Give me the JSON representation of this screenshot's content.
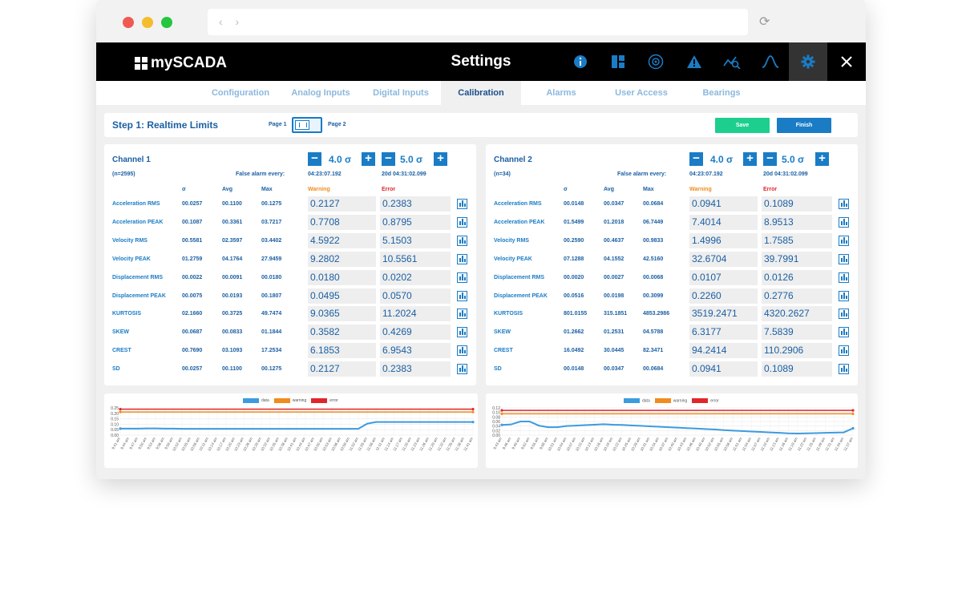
{
  "app": {
    "title": "Settings",
    "logo": "mySCADA"
  },
  "toolbar_icons": [
    "info-icon",
    "dashboard-icon",
    "network-icon",
    "warning-icon",
    "analytics-icon",
    "waveform-icon",
    "gear-icon",
    "close-icon"
  ],
  "tabs": [
    "Configuration",
    "Analog Inputs",
    "Digital Inputs",
    "Calibration",
    "Alarms",
    "User Access",
    "Bearings"
  ],
  "active_tab": "Calibration",
  "step": {
    "title": "Step 1: Realtime Limits",
    "page1": "Page 1",
    "page2": "Page 2",
    "save": "Save",
    "finish": "Finish"
  },
  "colors": {
    "accent": "#1a7cc5",
    "save": "#1dcf8f",
    "warning": "#f08c1c",
    "error": "#e0262c"
  },
  "columns": {
    "sigma": "σ",
    "avg": "Avg",
    "max": "Max",
    "warning": "Warning",
    "error": "Error"
  },
  "labels": {
    "false_alarm": "False alarm every:"
  },
  "channels": [
    {
      "title": "Channel 1",
      "n": "(n=2595)",
      "warn_sigma": "4.0 σ",
      "err_sigma": "5.0 σ",
      "warn_time": "04:23:07.192",
      "err_time": "20d 04:31:02.099",
      "rows": [
        {
          "label": "Acceleration RMS",
          "sigma": "00.0257",
          "avg": "00.1100",
          "max": "00.1275",
          "warning": "0.2127",
          "error": "0.2383"
        },
        {
          "label": "Acceleration PEAK",
          "sigma": "00.1087",
          "avg": "00.3361",
          "max": "03.7217",
          "warning": "0.7708",
          "error": "0.8795"
        },
        {
          "label": "Velocity RMS",
          "sigma": "00.5581",
          "avg": "02.3597",
          "max": "03.4402",
          "warning": "4.5922",
          "error": "5.1503"
        },
        {
          "label": "Velocity PEAK",
          "sigma": "01.2759",
          "avg": "04.1764",
          "max": "27.9459",
          "warning": "9.2802",
          "error": "10.5561"
        },
        {
          "label": "Displacement RMS",
          "sigma": "00.0022",
          "avg": "00.0091",
          "max": "00.0180",
          "warning": "0.0180",
          "error": "0.0202"
        },
        {
          "label": "Displacement PEAK",
          "sigma": "00.0075",
          "avg": "00.0193",
          "max": "00.1807",
          "warning": "0.0495",
          "error": "0.0570"
        },
        {
          "label": "KURTOSIS",
          "sigma": "02.1660",
          "avg": "00.3725",
          "max": "49.7474",
          "warning": "9.0365",
          "error": "11.2024"
        },
        {
          "label": "SKEW",
          "sigma": "00.0687",
          "avg": "00.0833",
          "max": "01.1844",
          "warning": "0.3582",
          "error": "0.4269"
        },
        {
          "label": "CREST",
          "sigma": "00.7690",
          "avg": "03.1093",
          "max": "17.2534",
          "warning": "6.1853",
          "error": "6.9543"
        },
        {
          "label": "SD",
          "sigma": "00.0257",
          "avg": "00.1100",
          "max": "00.1275",
          "warning": "0.2127",
          "error": "0.2383"
        }
      ]
    },
    {
      "title": "Channel 2",
      "n": "(n=34)",
      "warn_sigma": "4.0 σ",
      "err_sigma": "5.0 σ",
      "warn_time": "04:23:07.192",
      "err_time": "20d 04:31:02.099",
      "rows": [
        {
          "label": "Acceleration RMS",
          "sigma": "00.0148",
          "avg": "00.0347",
          "max": "00.0684",
          "warning": "0.0941",
          "error": "0.1089"
        },
        {
          "label": "Acceleration PEAK",
          "sigma": "01.5499",
          "avg": "01.2018",
          "max": "06.7449",
          "warning": "7.4014",
          "error": "8.9513"
        },
        {
          "label": "Velocity RMS",
          "sigma": "00.2590",
          "avg": "00.4637",
          "max": "00.9833",
          "warning": "1.4996",
          "error": "1.7585"
        },
        {
          "label": "Velocity PEAK",
          "sigma": "07.1288",
          "avg": "04.1552",
          "max": "42.5160",
          "warning": "32.6704",
          "error": "39.7991"
        },
        {
          "label": "Displacement RMS",
          "sigma": "00.0020",
          "avg": "00.0027",
          "max": "00.0068",
          "warning": "0.0107",
          "error": "0.0126"
        },
        {
          "label": "Displacement PEAK",
          "sigma": "00.0516",
          "avg": "00.0198",
          "max": "00.3099",
          "warning": "0.2260",
          "error": "0.2776"
        },
        {
          "label": "KURTOSIS",
          "sigma": "801.0155",
          "avg": "315.1851",
          "max": "4853.2986",
          "warning": "3519.2471",
          "error": "4320.2627"
        },
        {
          "label": "SKEW",
          "sigma": "01.2662",
          "avg": "01.2531",
          "max": "04.5788",
          "warning": "6.3177",
          "error": "7.5839"
        },
        {
          "label": "CREST",
          "sigma": "16.0492",
          "avg": "30.0445",
          "max": "82.3471",
          "warning": "94.2414",
          "error": "110.2906"
        },
        {
          "label": "SD",
          "sigma": "00.0148",
          "avg": "00.0347",
          "max": "00.0684",
          "warning": "0.0941",
          "error": "0.1089"
        }
      ]
    }
  ],
  "chart_data": [
    {
      "type": "line",
      "legend": [
        "data",
        "warning",
        "error"
      ],
      "ylim": [
        0,
        0.25
      ],
      "yticks": [
        "0.25",
        "0.20",
        "0.15",
        "0.10",
        "0.05",
        "0.00"
      ],
      "x": [
        "9:41 am",
        "9:44 am",
        "9:47 am",
        "9:50 am",
        "9:53 am",
        "9:56 am",
        "9:59 am",
        "10:02 am",
        "10:05 am",
        "10:08 am",
        "10:11 am",
        "10:14 am",
        "10:17 am",
        "10:20 am",
        "10:23 am",
        "10:26 am",
        "10:29 am",
        "10:32 am",
        "10:35 am",
        "10:38 am",
        "10:41 am",
        "10:44 am",
        "10:47 am",
        "10:50 am",
        "10:53 am",
        "10:56 am",
        "10:59 am",
        "11:02 am",
        "11:05 am",
        "11:08 am",
        "11:11 am",
        "11:14 am",
        "11:17 am",
        "11:20 am",
        "11:23 am",
        "11:26 am",
        "11:29 am",
        "11:32 am",
        "11:35 am",
        "11:38 am",
        "11:41 am"
      ],
      "series": [
        {
          "name": "data",
          "color": "#3d9be0",
          "values": [
            0.06,
            0.06,
            0.06,
            0.062,
            0.062,
            0.06,
            0.06,
            0.058,
            0.058,
            0.058,
            0.058,
            0.058,
            0.058,
            0.058,
            0.058,
            0.058,
            0.058,
            0.058,
            0.058,
            0.058,
            0.058,
            0.058,
            0.058,
            0.058,
            0.058,
            0.058,
            0.058,
            0.058,
            0.105,
            0.12,
            0.12,
            0.12,
            0.12,
            0.12,
            0.12,
            0.12,
            0.12,
            0.12,
            0.12,
            0.12,
            0.12
          ]
        },
        {
          "name": "warning",
          "color": "#f08c1c",
          "values": [
            0.2127,
            0.2127,
            0.2127,
            0.2127,
            0.2127,
            0.2127,
            0.2127,
            0.2127,
            0.2127,
            0.2127,
            0.2127,
            0.2127,
            0.2127,
            0.2127,
            0.2127,
            0.2127,
            0.2127,
            0.2127,
            0.2127,
            0.2127,
            0.2127,
            0.2127,
            0.2127,
            0.2127,
            0.2127,
            0.2127,
            0.2127,
            0.2127,
            0.2127,
            0.2127,
            0.2127,
            0.2127,
            0.2127,
            0.2127,
            0.2127,
            0.2127,
            0.2127,
            0.2127,
            0.2127,
            0.2127,
            0.2127
          ]
        },
        {
          "name": "error",
          "color": "#e0262c",
          "values": [
            0.2383,
            0.2383,
            0.2383,
            0.2383,
            0.2383,
            0.2383,
            0.2383,
            0.2383,
            0.2383,
            0.2383,
            0.2383,
            0.2383,
            0.2383,
            0.2383,
            0.2383,
            0.2383,
            0.2383,
            0.2383,
            0.2383,
            0.2383,
            0.2383,
            0.2383,
            0.2383,
            0.2383,
            0.2383,
            0.2383,
            0.2383,
            0.2383,
            0.2383,
            0.2383,
            0.2383,
            0.2383,
            0.2383,
            0.2383,
            0.2383,
            0.2383,
            0.2383,
            0.2383,
            0.2383,
            0.2383,
            0.2383
          ]
        }
      ]
    },
    {
      "type": "line",
      "legend": [
        "data",
        "warning",
        "error"
      ],
      "ylim": [
        0,
        0.12
      ],
      "yticks": [
        "0.12",
        "0.10",
        "0.08",
        "0.06",
        "0.04",
        "0.02",
        "0.00"
      ],
      "x": [
        "9:43 am",
        "9:46 am",
        "9:49 am",
        "9:52 am",
        "9:55 am",
        "9:58 am",
        "10:01 am",
        "10:04 am",
        "10:07 am",
        "10:10 am",
        "10:13 am",
        "10:16 am",
        "10:19 am",
        "10:22 am",
        "10:25 am",
        "10:28 am",
        "10:31 am",
        "10:34 am",
        "10:37 am",
        "10:40 am",
        "10:43 am",
        "10:46 am",
        "10:49 am",
        "10:52 am",
        "10:55 am",
        "10:58 am",
        "11:01 am",
        "11:04 am",
        "11:07 am",
        "11:10 am",
        "11:13 am",
        "11:16 am",
        "11:19 am",
        "11:22 am",
        "11:25 am",
        "11:28 am",
        "11:31 am",
        "11:34 am",
        "11:37 am"
      ],
      "series": [
        {
          "name": "data",
          "color": "#3d9be0",
          "values": [
            0.045,
            0.047,
            0.06,
            0.06,
            0.042,
            0.035,
            0.035,
            0.04,
            0.042,
            0.044,
            0.046,
            0.048,
            0.046,
            0.045,
            0.043,
            0.041,
            0.039,
            0.037,
            0.035,
            0.033,
            0.031,
            0.029,
            0.027,
            0.025,
            0.022,
            0.02,
            0.018,
            0.016,
            0.014,
            0.012,
            0.01,
            0.008,
            0.007,
            0.008,
            0.009,
            0.01,
            0.011,
            0.012,
            0.03
          ]
        },
        {
          "name": "warning",
          "color": "#f08c1c",
          "values": [
            0.0941,
            0.0941,
            0.0941,
            0.0941,
            0.0941,
            0.0941,
            0.0941,
            0.0941,
            0.0941,
            0.0941,
            0.0941,
            0.0941,
            0.0941,
            0.0941,
            0.0941,
            0.0941,
            0.0941,
            0.0941,
            0.0941,
            0.0941,
            0.0941,
            0.0941,
            0.0941,
            0.0941,
            0.0941,
            0.0941,
            0.0941,
            0.0941,
            0.0941,
            0.0941,
            0.0941,
            0.0941,
            0.0941,
            0.0941,
            0.0941,
            0.0941,
            0.0941,
            0.0941,
            0.0941
          ]
        },
        {
          "name": "error",
          "color": "#e0262c",
          "values": [
            0.1089,
            0.1089,
            0.1089,
            0.1089,
            0.1089,
            0.1089,
            0.1089,
            0.1089,
            0.1089,
            0.1089,
            0.1089,
            0.1089,
            0.1089,
            0.1089,
            0.1089,
            0.1089,
            0.1089,
            0.1089,
            0.1089,
            0.1089,
            0.1089,
            0.1089,
            0.1089,
            0.1089,
            0.1089,
            0.1089,
            0.1089,
            0.1089,
            0.1089,
            0.1089,
            0.1089,
            0.1089,
            0.1089,
            0.1089,
            0.1089,
            0.1089,
            0.1089,
            0.1089,
            0.1089
          ]
        }
      ]
    }
  ]
}
